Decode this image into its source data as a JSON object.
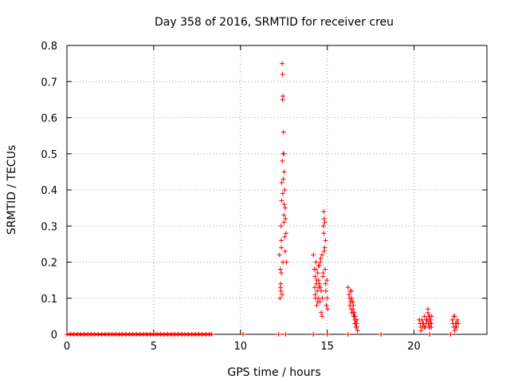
{
  "chart_data": {
    "type": "scatter",
    "title": "Day 358 of 2016, SRMTID for receiver creu",
    "xlabel": "GPS time / hours",
    "ylabel": "SRMTID / TECUs",
    "xlim": [
      0,
      24.2
    ],
    "ylim": [
      0,
      0.8
    ],
    "x_ticks": [
      0,
      5,
      10,
      15,
      20
    ],
    "x_tick_labels": [
      "0",
      "5",
      "10",
      "15",
      "20"
    ],
    "y_ticks": [
      0,
      0.1,
      0.2,
      0.3,
      0.4,
      0.5,
      0.6,
      0.7,
      0.8
    ],
    "y_tick_labels": [
      "0",
      "0.1",
      "0.2",
      "0.3",
      "0.4",
      "0.5",
      "0.6",
      "0.7",
      "0.8"
    ],
    "grid": true,
    "marker": "+",
    "series_color": "#ff0000",
    "series": [
      {
        "name": "SRMTID",
        "x": [
          0.0,
          0.2,
          0.4,
          0.6,
          0.8,
          1.0,
          1.2,
          1.4,
          1.6,
          1.8,
          2.0,
          2.2,
          2.4,
          2.6,
          2.8,
          3.0,
          3.2,
          3.4,
          3.6,
          3.8,
          4.0,
          4.2,
          4.4,
          4.6,
          4.8,
          5.0,
          5.2,
          5.4,
          5.6,
          5.8,
          6.0,
          6.2,
          6.4,
          6.6,
          6.8,
          7.0,
          7.2,
          7.4,
          7.6,
          7.8,
          8.0,
          8.2,
          8.35,
          10.15,
          12.2,
          12.6,
          14.2,
          15.0,
          16.2,
          18.1,
          20.9,
          22.1,
          12.25,
          12.28,
          12.3,
          12.32,
          12.34,
          12.35,
          12.37,
          12.38,
          12.4,
          12.42,
          12.43,
          12.45,
          12.46,
          12.48,
          12.5,
          12.52,
          12.55,
          12.58,
          12.6,
          12.62,
          12.65,
          12.3,
          12.4,
          12.5,
          12.45,
          12.55,
          12.35,
          12.33,
          12.36,
          12.41,
          12.44,
          12.47,
          12.5,
          12.52,
          12.57,
          14.2,
          14.25,
          14.28,
          14.3,
          14.32,
          14.35,
          14.38,
          14.4,
          14.42,
          14.45,
          14.48,
          14.5,
          14.52,
          14.55,
          14.58,
          14.6,
          14.62,
          14.65,
          14.7,
          14.72,
          14.75,
          14.78,
          14.8,
          14.82,
          14.85,
          14.88,
          14.9,
          14.92,
          14.95,
          14.98,
          15.0,
          15.02,
          14.3,
          14.4,
          14.5,
          14.6,
          14.8,
          14.9,
          14.35,
          14.45,
          14.55,
          14.65,
          14.82,
          14.86,
          14.7,
          14.76,
          16.2,
          16.25,
          16.3,
          16.32,
          16.35,
          16.38,
          16.4,
          16.42,
          16.45,
          16.48,
          16.5,
          16.52,
          16.55,
          16.58,
          16.6,
          16.62,
          16.65,
          16.68,
          16.7,
          16.72,
          16.75,
          16.3,
          16.4,
          16.5,
          16.6,
          16.45,
          16.55,
          16.65,
          20.3,
          20.35,
          20.4,
          20.45,
          20.5,
          20.55,
          20.6,
          20.65,
          20.7,
          20.75,
          20.8,
          20.82,
          20.85,
          20.88,
          20.9,
          20.92,
          20.95,
          20.98,
          21.0,
          21.02,
          20.5,
          20.6,
          20.7,
          20.8,
          20.9,
          21.0,
          20.4,
          20.85,
          20.75,
          22.2,
          22.25,
          22.3,
          22.35,
          22.4,
          22.45,
          22.5,
          22.55,
          22.3,
          22.4,
          22.35,
          22.45
        ],
        "y": [
          0,
          0,
          0,
          0,
          0,
          0,
          0,
          0,
          0,
          0,
          0,
          0,
          0,
          0,
          0,
          0,
          0,
          0,
          0,
          0,
          0,
          0,
          0,
          0,
          0,
          0,
          0,
          0,
          0,
          0,
          0,
          0,
          0,
          0,
          0,
          0,
          0,
          0,
          0,
          0,
          0,
          0,
          0,
          0,
          0,
          0,
          0,
          0,
          0,
          0,
          0,
          0,
          0.22,
          0.1,
          0.18,
          0.14,
          0.3,
          0.26,
          0.37,
          0.42,
          0.75,
          0.72,
          0.65,
          0.66,
          0.5,
          0.56,
          0.5,
          0.45,
          0.4,
          0.35,
          0.32,
          0.28,
          0.2,
          0.13,
          0.11,
          0.33,
          0.2,
          0.27,
          0.17,
          0.12,
          0.24,
          0.48,
          0.39,
          0.43,
          0.31,
          0.36,
          0.23,
          0.22,
          0.18,
          0.13,
          0.16,
          0.1,
          0.2,
          0.14,
          0.08,
          0.12,
          0.17,
          0.1,
          0.15,
          0.13,
          0.19,
          0.09,
          0.2,
          0.21,
          0.12,
          0.05,
          0.1,
          0.16,
          0.3,
          0.34,
          0.32,
          0.24,
          0.18,
          0.14,
          0.12,
          0.08,
          0.15,
          0.1,
          0.07,
          0.11,
          0.15,
          0.19,
          0.13,
          0.28,
          0.26,
          0.18,
          0.09,
          0.14,
          0.06,
          0.23,
          0.31,
          0.22,
          0.17,
          0.13,
          0.11,
          0.08,
          0.12,
          0.09,
          0.07,
          0.1,
          0.06,
          0.09,
          0.07,
          0.08,
          0.05,
          0.06,
          0.03,
          0.05,
          0.04,
          0.02,
          0.03,
          0.02,
          0.04,
          0.01,
          0.1,
          0.12,
          0.06,
          0.04,
          0.09,
          0.05,
          0.03,
          0.04,
          0.03,
          0.02,
          0.04,
          0.02,
          0.03,
          0.05,
          0.02,
          0.03,
          0.04,
          0.06,
          0.03,
          0.05,
          0.04,
          0.03,
          0.02,
          0.04,
          0.03,
          0.02,
          0.05,
          0.03,
          0.02,
          0.04,
          0.07,
          0.05,
          0.03,
          0.01,
          0.02,
          0.04,
          0.04,
          0.03,
          0.02,
          0.05,
          0.03,
          0.02,
          0.04,
          0.03,
          0.05,
          0.02,
          0.01,
          0.03
        ]
      }
    ]
  }
}
